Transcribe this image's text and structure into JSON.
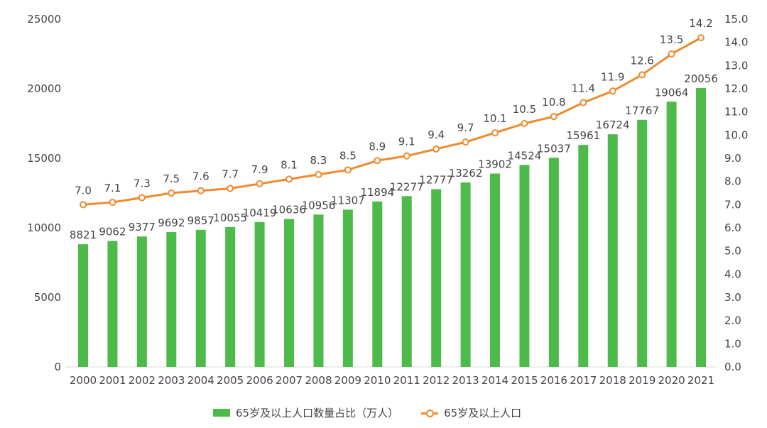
{
  "chart_data": {
    "type": "bar+line",
    "categories": [
      "2000",
      "2001",
      "2002",
      "2003",
      "2004",
      "2005",
      "2006",
      "2007",
      "2008",
      "2009",
      "2010",
      "2011",
      "2012",
      "2013",
      "2014",
      "2015",
      "2016",
      "2017",
      "2018",
      "2019",
      "2020",
      "2021"
    ],
    "series": [
      {
        "name": "65岁及以上人口数量占比（万人）",
        "type": "bar",
        "axis": "left",
        "color": "#4dbb49",
        "values": [
          8821,
          9062,
          9377,
          9692,
          9857,
          10055,
          10419,
          10636,
          10956,
          11307,
          11894,
          12277,
          12777,
          13262,
          13902,
          14524,
          15037,
          15961,
          16724,
          17767,
          19064,
          20056
        ]
      },
      {
        "name": "65岁及以上人口",
        "type": "line",
        "axis": "right",
        "color": "#ef8a2f",
        "values": [
          7.0,
          7.1,
          7.3,
          7.5,
          7.6,
          7.7,
          7.9,
          8.1,
          8.3,
          8.5,
          8.9,
          9.1,
          9.4,
          9.7,
          10.1,
          10.5,
          10.8,
          11.4,
          11.9,
          12.6,
          13.5,
          14.2
        ]
      }
    ],
    "y_left": {
      "range": [
        0,
        25000
      ],
      "ticks": [
        "0",
        "5000",
        "10000",
        "15000",
        "20000",
        "25000"
      ]
    },
    "y_right": {
      "range": [
        0,
        15
      ],
      "ticks": [
        "0.0",
        "1.0",
        "2.0",
        "3.0",
        "4.0",
        "5.0",
        "6.0",
        "7.0",
        "8.0",
        "9.0",
        "10.0",
        "11.0",
        "12.0",
        "13.0",
        "14.0",
        "15.0"
      ]
    },
    "grid": false,
    "legend_position": "bottom"
  }
}
